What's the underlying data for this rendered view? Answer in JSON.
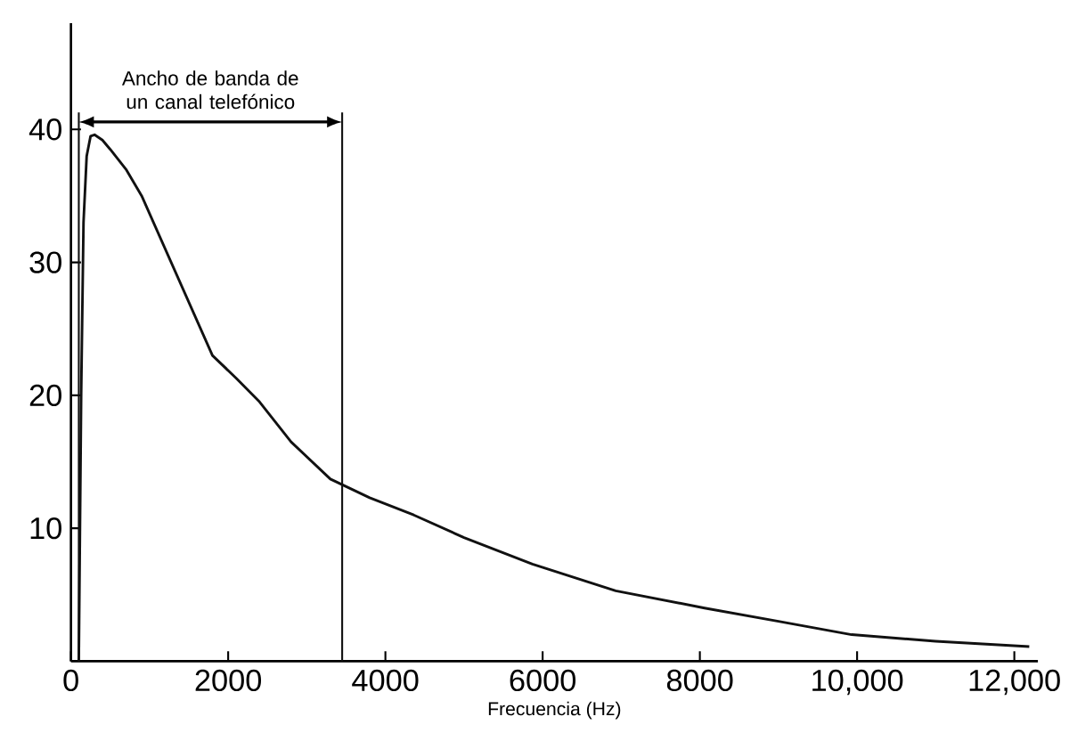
{
  "chart_data": {
    "type": "line",
    "xlabel": "Frecuencia (Hz)",
    "x": [
      100,
      130,
      160,
      200,
      250,
      300,
      400,
      500,
      700,
      900,
      1200,
      1500,
      1800,
      2100,
      2400,
      2800,
      3300,
      3800,
      4360,
      5000,
      5870,
      6930,
      8060,
      9000,
      9930,
      11000,
      12190
    ],
    "series": [
      {
        "color": "#111111",
        "values": [
          0,
          20,
          33,
          38,
          39.5,
          39.6,
          39.2,
          38.5,
          37,
          35,
          31,
          27,
          23,
          21.3,
          19.5,
          16.5,
          13.7,
          12.3,
          11,
          9.3,
          7.3,
          5.3,
          4,
          3,
          2,
          1.5,
          1.1
        ]
      }
    ],
    "xlim": [
      0,
      12300
    ],
    "ylim": [
      0,
      48
    ],
    "xticks": [
      0,
      2000,
      4000,
      6000,
      8000,
      {
        "value": 10000,
        "label": "10,000"
      },
      {
        "value": 12000,
        "label": "12,000"
      }
    ],
    "yticks": [
      10,
      20,
      30,
      40
    ],
    "ref_lines": [
      {
        "axis": "x",
        "value": 100,
        "color": "#111111"
      },
      {
        "axis": "x",
        "value": 3450,
        "color": "#111111"
      }
    ],
    "annotations": [
      "Ancho de banda de un canal telefónico"
    ],
    "grid": false,
    "marker": "none",
    "line_style": "solid"
  }
}
